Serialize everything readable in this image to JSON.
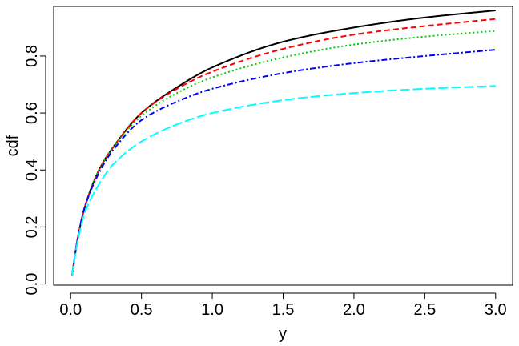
{
  "chart_data": {
    "type": "line",
    "title": "",
    "xlabel": "y",
    "ylabel": "cdf",
    "xlim": [
      -0.12,
      3.12
    ],
    "ylim": [
      -0.004,
      0.974
    ],
    "xticks": [
      0.0,
      0.5,
      1.0,
      1.5,
      2.0,
      2.5,
      3.0
    ],
    "xtick_labels": [
      "0.0",
      "0.5",
      "1.0",
      "1.5",
      "2.0",
      "2.5",
      "3.0"
    ],
    "yticks": [
      0.0,
      0.2,
      0.4,
      0.6,
      0.8
    ],
    "ytick_labels": [
      "0.0",
      "0.2",
      "0.4",
      "0.6",
      "0.8"
    ],
    "grid": false,
    "legend": false,
    "x": [
      0.01,
      0.05,
      0.1,
      0.2,
      0.3,
      0.5,
      0.75,
      1.0,
      1.5,
      2.0,
      2.5,
      3.0
    ],
    "series": [
      {
        "color": "#000000",
        "line_style": "solid",
        "values": [
          0.03,
          0.16,
          0.27,
          0.4,
          0.48,
          0.6,
          0.69,
          0.76,
          0.85,
          0.9,
          0.935,
          0.96
        ]
      },
      {
        "color": "#ff0000",
        "line_style": "dashed",
        "values": [
          0.03,
          0.16,
          0.27,
          0.4,
          0.48,
          0.6,
          0.685,
          0.745,
          0.825,
          0.875,
          0.905,
          0.93
        ]
      },
      {
        "color": "#00cd00",
        "line_style": "dotted",
        "values": [
          0.03,
          0.16,
          0.27,
          0.4,
          0.48,
          0.59,
          0.67,
          0.725,
          0.795,
          0.84,
          0.868,
          0.888
        ]
      },
      {
        "color": "#0000ff",
        "line_style": "dotdash",
        "values": [
          0.03,
          0.16,
          0.27,
          0.39,
          0.47,
          0.575,
          0.64,
          0.685,
          0.74,
          0.775,
          0.8,
          0.822
        ]
      },
      {
        "color": "#00ffff",
        "line_style": "longdash",
        "values": [
          0.03,
          0.15,
          0.25,
          0.35,
          0.42,
          0.5,
          0.56,
          0.6,
          0.645,
          0.67,
          0.685,
          0.695
        ]
      }
    ]
  }
}
